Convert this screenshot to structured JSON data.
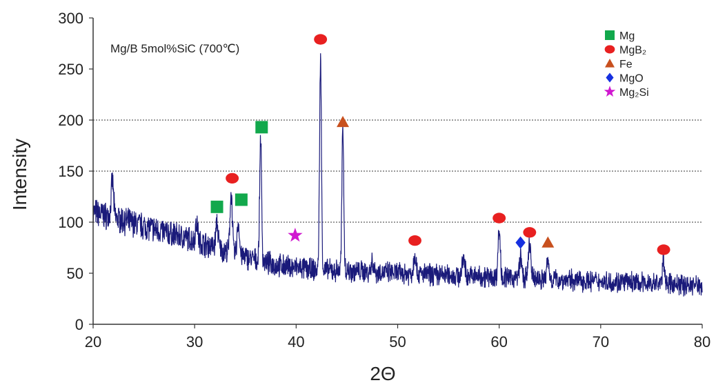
{
  "chart_data": {
    "type": "line",
    "title": "",
    "annotation": "Mg/B 5mol%SiC (700℃)",
    "xlabel": "2Θ",
    "ylabel": "Intensity",
    "xlim": [
      20,
      80
    ],
    "ylim": [
      0,
      300
    ],
    "x_ticks": [
      20,
      30,
      40,
      50,
      60,
      70,
      80
    ],
    "y_ticks": [
      0,
      50,
      100,
      150,
      200,
      250,
      300
    ],
    "grid": {
      "horizontal_dashed_at": [
        100,
        150,
        200
      ]
    },
    "line_color": "#1a1a7a",
    "series": [
      {
        "name": "",
        "baseline": [
          [
            20,
            110
          ],
          [
            25,
            96
          ],
          [
            30,
            82
          ],
          [
            34,
            68
          ],
          [
            38,
            58
          ],
          [
            42,
            53
          ],
          [
            46,
            52
          ],
          [
            50,
            50
          ],
          [
            55,
            48
          ],
          [
            60,
            46
          ],
          [
            65,
            44
          ],
          [
            70,
            42
          ],
          [
            75,
            40
          ],
          [
            80,
            38
          ]
        ],
        "peaks": [
          {
            "x": 21.9,
            "y": 140
          },
          {
            "x": 30.2,
            "y": 100
          },
          {
            "x": 32.2,
            "y": 100
          },
          {
            "x": 33.6,
            "y": 130
          },
          {
            "x": 34.3,
            "y": 100
          },
          {
            "x": 36.5,
            "y": 185
          },
          {
            "x": 42.4,
            "y": 260
          },
          {
            "x": 44.6,
            "y": 192
          },
          {
            "x": 47.5,
            "y": 62
          },
          {
            "x": 51.7,
            "y": 70
          },
          {
            "x": 56.5,
            "y": 66
          },
          {
            "x": 60.0,
            "y": 92
          },
          {
            "x": 62.1,
            "y": 66
          },
          {
            "x": 63.0,
            "y": 80
          },
          {
            "x": 64.8,
            "y": 62
          },
          {
            "x": 76.2,
            "y": 62
          }
        ]
      }
    ],
    "markers": [
      {
        "phase": "Mg",
        "x": 32.2,
        "y": 115
      },
      {
        "phase": "Mg",
        "x": 34.6,
        "y": 122
      },
      {
        "phase": "Mg",
        "x": 36.6,
        "y": 193
      },
      {
        "phase": "MgB2",
        "x": 33.7,
        "y": 143
      },
      {
        "phase": "MgB2",
        "x": 42.4,
        "y": 279
      },
      {
        "phase": "MgB2",
        "x": 51.7,
        "y": 82
      },
      {
        "phase": "MgB2",
        "x": 60.0,
        "y": 104
      },
      {
        "phase": "MgB2",
        "x": 63.0,
        "y": 90
      },
      {
        "phase": "MgB2",
        "x": 76.2,
        "y": 73
      },
      {
        "phase": "Fe",
        "x": 44.6,
        "y": 198
      },
      {
        "phase": "Fe",
        "x": 64.8,
        "y": 80
      },
      {
        "phase": "MgO",
        "x": 62.1,
        "y": 80
      },
      {
        "phase": "Mg2Si",
        "x": 39.9,
        "y": 87
      }
    ],
    "legend": {
      "placement": "top-right",
      "entries": [
        {
          "key": "Mg",
          "label": "Mg",
          "symbol": "square",
          "color": "#12a84c"
        },
        {
          "key": "MgB2",
          "label": "MgB₂",
          "symbol": "circle",
          "color": "#e82020"
        },
        {
          "key": "Fe",
          "label": "Fe",
          "symbol": "triangle",
          "color": "#c8501e"
        },
        {
          "key": "MgO",
          "label": "MgO",
          "symbol": "diamond",
          "color": "#1630e0"
        },
        {
          "key": "Mg2Si",
          "label": "Mg₂Si",
          "symbol": "star",
          "color": "#d018d0"
        }
      ]
    }
  }
}
